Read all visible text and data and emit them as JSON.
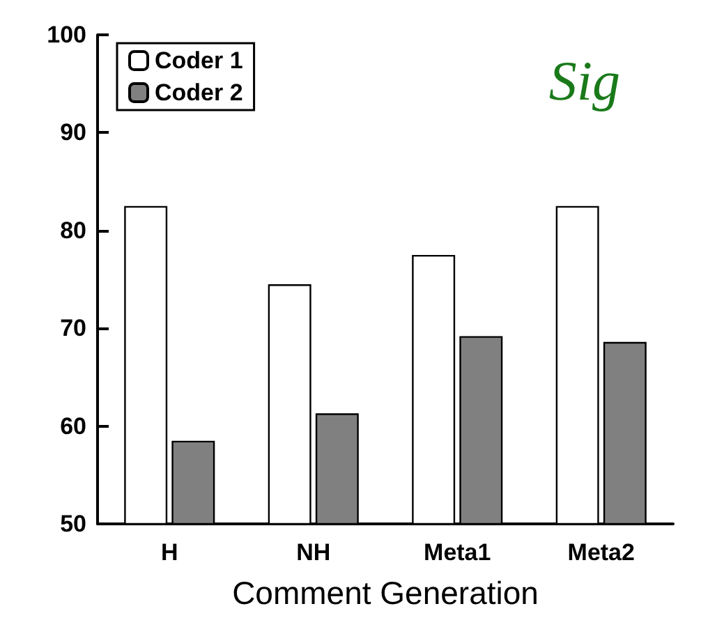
{
  "chart_data": {
    "type": "bar",
    "xlabel": "Comment Generation",
    "categories": [
      "H",
      "NH",
      "Meta1",
      "Meta2"
    ],
    "series": [
      {
        "name": "Coder 1",
        "color": "#ffffff",
        "values": [
          82.5,
          74.5,
          77.5,
          82.5
        ]
      },
      {
        "name": "Coder 2",
        "color": "#808080",
        "values": [
          58.5,
          61.3,
          69.2,
          68.6
        ]
      }
    ],
    "ylim": [
      50,
      100
    ],
    "yticks": [
      50,
      60,
      70,
      80,
      90,
      100
    ],
    "grid": false,
    "legend": "top left",
    "annotations": [
      "Sig"
    ]
  }
}
